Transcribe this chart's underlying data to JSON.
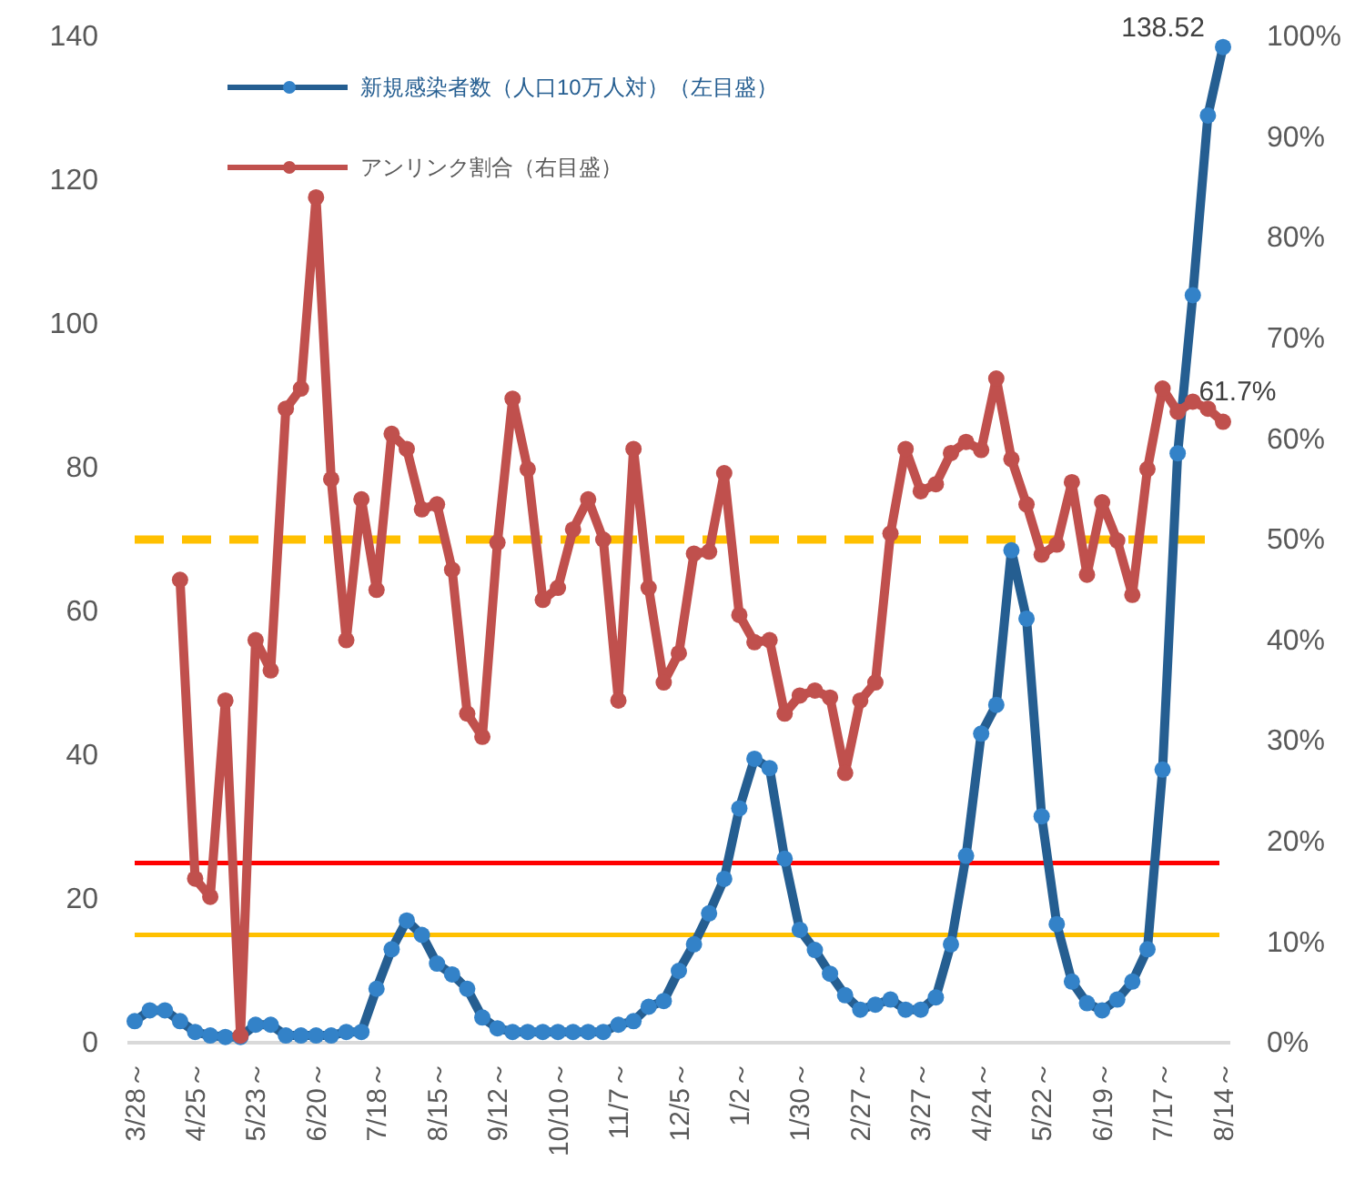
{
  "chart_data": {
    "type": "line",
    "categories": [
      "3/28～",
      null,
      null,
      null,
      "4/25～",
      null,
      null,
      null,
      "5/23～",
      null,
      null,
      null,
      "6/20～",
      null,
      null,
      null,
      "7/18～",
      null,
      null,
      null,
      "8/15～",
      null,
      null,
      null,
      "9/12～",
      null,
      null,
      null,
      "10/10～",
      null,
      null,
      null,
      "11/7～",
      null,
      null,
      null,
      "12/5～",
      null,
      null,
      null,
      "1/2～",
      null,
      null,
      null,
      "1/30～",
      null,
      null,
      null,
      "2/27～",
      null,
      null,
      null,
      "3/27～",
      null,
      null,
      null,
      "4/24～",
      null,
      null,
      null,
      "5/22～",
      null,
      null,
      null,
      "6/19～",
      null,
      null,
      null,
      "7/17～",
      null,
      null,
      null,
      "8/14～"
    ],
    "series": [
      {
        "name": "新規感染者数（人口10万人対）（左目盛）",
        "color": "#255e91",
        "values": [
          3,
          4.5,
          4.5,
          3,
          1.5,
          1,
          0.8,
          0.8,
          2.5,
          2.5,
          1,
          1,
          1,
          1,
          1.5,
          1.5,
          7.5,
          13,
          17,
          15,
          11,
          9.5,
          7.5,
          3.5,
          2,
          1.5,
          1.5,
          1.5,
          1.5,
          1.5,
          1.5,
          1.5,
          2.5,
          3,
          5,
          5.8,
          10,
          13.7,
          18,
          22.8,
          32.6,
          39.5,
          38.2,
          25.6,
          15.7,
          12.9,
          9.6,
          6.6,
          4.6,
          5.3,
          6,
          4.6,
          4.6,
          6.3,
          13.7,
          26,
          43,
          47,
          68.5,
          59,
          31.5,
          16.5,
          8.5,
          5.5,
          4.5,
          6,
          8.5,
          13,
          38,
          82,
          104,
          129,
          138.52
        ],
        "value_labels": [
          null,
          null,
          null,
          null,
          null,
          null,
          null,
          null,
          null,
          null,
          null,
          null,
          null,
          null,
          null,
          null,
          null,
          null,
          null,
          null,
          null,
          null,
          null,
          null,
          null,
          null,
          null,
          null,
          null,
          null,
          null,
          null,
          null,
          null,
          null,
          null,
          null,
          null,
          null,
          null,
          null,
          null,
          null,
          null,
          null,
          null,
          null,
          null,
          null,
          null,
          null,
          null,
          null,
          null,
          null,
          null,
          null,
          null,
          null,
          null,
          null,
          null,
          null,
          null,
          null,
          null,
          null,
          null,
          null,
          null,
          null,
          null,
          "138.52"
        ]
      },
      {
        "name": "アンリンク割合（右目盛）",
        "color": "#c0504d",
        "axis": "y2",
        "values": [
          null,
          null,
          null,
          46,
          16.3,
          14.5,
          34,
          0.7,
          40,
          37,
          63,
          65,
          84,
          56,
          40,
          54,
          45,
          60.5,
          59,
          53,
          53.5,
          47,
          32.7,
          30.4,
          49.7,
          64,
          57,
          44,
          45.2,
          51,
          54,
          50,
          34,
          59,
          45.2,
          35.8,
          38.7,
          48.6,
          48.8,
          56.6,
          42.5,
          39.8,
          40,
          32.7,
          34.5,
          35,
          34.3,
          26.8,
          34,
          35.8,
          50.6,
          59,
          54.8,
          55.5,
          58.6,
          59.7,
          58.9,
          66,
          58,
          53.5,
          48.5,
          49.5,
          55.7,
          46.5,
          53.7,
          49.9,
          44.5,
          57,
          65,
          62.7,
          63.7,
          63,
          61.7
        ],
        "value_labels": [
          null,
          null,
          null,
          null,
          null,
          null,
          null,
          null,
          null,
          null,
          null,
          null,
          null,
          null,
          null,
          null,
          null,
          null,
          null,
          null,
          null,
          null,
          null,
          null,
          null,
          null,
          null,
          null,
          null,
          null,
          null,
          null,
          null,
          null,
          null,
          null,
          null,
          null,
          null,
          null,
          null,
          null,
          null,
          null,
          null,
          null,
          null,
          null,
          null,
          null,
          null,
          null,
          null,
          null,
          null,
          null,
          null,
          null,
          null,
          null,
          null,
          null,
          null,
          null,
          null,
          null,
          null,
          null,
          null,
          null,
          null,
          null,
          "61.7%"
        ]
      }
    ],
    "ylim": [
      0,
      140
    ],
    "yticks": [
      0,
      20,
      40,
      60,
      80,
      100,
      120,
      140
    ],
    "y2lim": [
      0,
      100
    ],
    "y2ticks": [
      {
        "value": 0,
        "label": "0%"
      },
      {
        "value": 10,
        "label": "10%"
      },
      {
        "value": 20,
        "label": "20%"
      },
      {
        "value": 30,
        "label": "30%"
      },
      {
        "value": 40,
        "label": "40%"
      },
      {
        "value": 50,
        "label": "50%"
      },
      {
        "value": 60,
        "label": "60%"
      },
      {
        "value": 70,
        "label": "70%"
      },
      {
        "value": 80,
        "label": "80%"
      },
      {
        "value": 90,
        "label": "90%"
      },
      {
        "value": 100,
        "label": "100%"
      }
    ],
    "ref_lines": [
      {
        "axis": "y",
        "value": 25,
        "color": "#ff0000",
        "line_style": "solid"
      },
      {
        "axis": "y",
        "value": 15,
        "color": "#ffc000",
        "line_style": "solid"
      },
      {
        "axis": "y2",
        "value": 50,
        "color": "#ffc000",
        "line_style": "dashed"
      }
    ],
    "grid": false,
    "legend": "top left",
    "marker": "circle",
    "line_style": "solid"
  }
}
